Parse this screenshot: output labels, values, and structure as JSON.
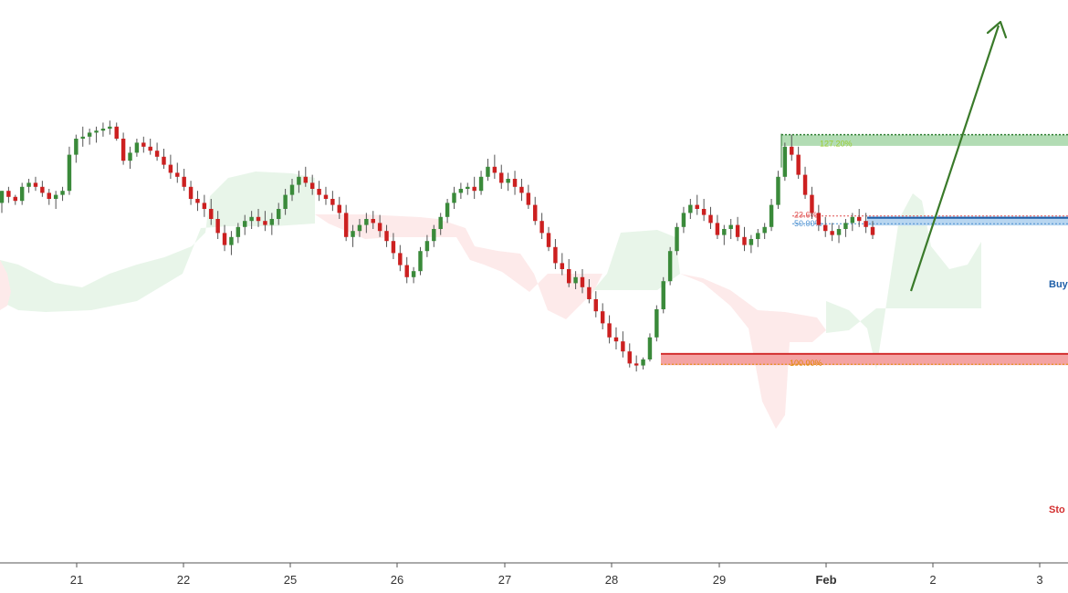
{
  "chart_data": {
    "type": "candlestick",
    "x_ticks": [
      "21",
      "22",
      "25",
      "26",
      "27",
      "28",
      "29",
      "Feb",
      "2",
      "3"
    ],
    "x_ticks_bold": [
      "Feb"
    ],
    "candles": [
      [
        208,
        214,
        203,
        214
      ],
      [
        214,
        216,
        208,
        211
      ],
      [
        211,
        212,
        207,
        209
      ],
      [
        209,
        218,
        207,
        216
      ],
      [
        216,
        220,
        213,
        218
      ],
      [
        218,
        221,
        214,
        216
      ],
      [
        216,
        219,
        211,
        213
      ],
      [
        213,
        215,
        207,
        210
      ],
      [
        210,
        214,
        205,
        212
      ],
      [
        212,
        216,
        209,
        214
      ],
      [
        214,
        236,
        212,
        232
      ],
      [
        232,
        242,
        228,
        240
      ],
      [
        240,
        246,
        236,
        241
      ],
      [
        241,
        245,
        237,
        243
      ],
      [
        243,
        246,
        238,
        244
      ],
      [
        244,
        248,
        241,
        245
      ],
      [
        245,
        249,
        242,
        246
      ],
      [
        246,
        248,
        239,
        240
      ],
      [
        240,
        243,
        227,
        229
      ],
      [
        229,
        236,
        225,
        233
      ],
      [
        233,
        240,
        231,
        238
      ],
      [
        238,
        241,
        233,
        236
      ],
      [
        236,
        240,
        232,
        234
      ],
      [
        234,
        238,
        229,
        231
      ],
      [
        231,
        235,
        225,
        227
      ],
      [
        227,
        232,
        220,
        223
      ],
      [
        223,
        228,
        218,
        221
      ],
      [
        221,
        225,
        214,
        216
      ],
      [
        216,
        219,
        207,
        210
      ],
      [
        210,
        214,
        204,
        208
      ],
      [
        208,
        212,
        201,
        205
      ],
      [
        205,
        210,
        197,
        200
      ],
      [
        200,
        204,
        190,
        193
      ],
      [
        193,
        197,
        184,
        187
      ],
      [
        187,
        194,
        182,
        191
      ],
      [
        191,
        198,
        188,
        196
      ],
      [
        196,
        202,
        192,
        199
      ],
      [
        199,
        204,
        195,
        201
      ],
      [
        201,
        205,
        196,
        199
      ],
      [
        199,
        204,
        194,
        197
      ],
      [
        197,
        203,
        192,
        200
      ],
      [
        200,
        208,
        197,
        205
      ],
      [
        205,
        215,
        202,
        212
      ],
      [
        212,
        220,
        209,
        217
      ],
      [
        217,
        224,
        213,
        221
      ],
      [
        221,
        226,
        216,
        218
      ],
      [
        218,
        222,
        212,
        215
      ],
      [
        215,
        219,
        209,
        212
      ],
      [
        212,
        216,
        207,
        210
      ],
      [
        210,
        214,
        204,
        207
      ],
      [
        207,
        211,
        200,
        203
      ],
      [
        203,
        207,
        189,
        191
      ],
      [
        191,
        197,
        186,
        194
      ],
      [
        194,
        200,
        191,
        197
      ],
      [
        197,
        203,
        193,
        200
      ],
      [
        200,
        204,
        195,
        198
      ],
      [
        198,
        202,
        191,
        194
      ],
      [
        194,
        197,
        186,
        189
      ],
      [
        189,
        193,
        180,
        183
      ],
      [
        183,
        187,
        174,
        177
      ],
      [
        177,
        181,
        168,
        171
      ],
      [
        171,
        176,
        168,
        174
      ],
      [
        174,
        186,
        172,
        184
      ],
      [
        184,
        192,
        181,
        189
      ],
      [
        189,
        197,
        186,
        195
      ],
      [
        195,
        203,
        192,
        201
      ],
      [
        201,
        210,
        198,
        208
      ],
      [
        208,
        216,
        205,
        213
      ],
      [
        213,
        218,
        210,
        215
      ],
      [
        215,
        218,
        212,
        216
      ],
      [
        216,
        221,
        210,
        214
      ],
      [
        214,
        224,
        212,
        221
      ],
      [
        221,
        230,
        219,
        226
      ],
      [
        226,
        232,
        220,
        223
      ],
      [
        223,
        227,
        215,
        218
      ],
      [
        218,
        223,
        214,
        220
      ],
      [
        220,
        224,
        212,
        216
      ],
      [
        216,
        220,
        209,
        213
      ],
      [
        213,
        217,
        205,
        207
      ],
      [
        207,
        211,
        197,
        199
      ],
      [
        199,
        203,
        190,
        193
      ],
      [
        193,
        196,
        184,
        186
      ],
      [
        186,
        190,
        175,
        178
      ],
      [
        178,
        183,
        172,
        175
      ],
      [
        175,
        180,
        166,
        168
      ],
      [
        168,
        174,
        165,
        171
      ],
      [
        171,
        175,
        163,
        166
      ],
      [
        166,
        170,
        158,
        160
      ],
      [
        160,
        164,
        151,
        154
      ],
      [
        154,
        158,
        145,
        148
      ],
      [
        148,
        152,
        138,
        141
      ],
      [
        141,
        146,
        135,
        139
      ],
      [
        139,
        144,
        131,
        134
      ],
      [
        134,
        138,
        126,
        128
      ],
      [
        128,
        132,
        124,
        127
      ],
      [
        127,
        131,
        125,
        130
      ],
      [
        130,
        143,
        129,
        141
      ],
      [
        141,
        157,
        139,
        155
      ],
      [
        155,
        171,
        153,
        169
      ],
      [
        169,
        186,
        167,
        184
      ],
      [
        184,
        198,
        182,
        196
      ],
      [
        196,
        206,
        193,
        203
      ],
      [
        203,
        210,
        200,
        207
      ],
      [
        207,
        212,
        202,
        205
      ],
      [
        205,
        210,
        199,
        202
      ],
      [
        202,
        206,
        195,
        198
      ],
      [
        198,
        202,
        190,
        192
      ],
      [
        192,
        197,
        187,
        195
      ],
      [
        195,
        200,
        190,
        197
      ],
      [
        197,
        201,
        189,
        191
      ],
      [
        191,
        196,
        184,
        187
      ],
      [
        187,
        192,
        183,
        190
      ],
      [
        190,
        195,
        186,
        193
      ],
      [
        193,
        198,
        190,
        196
      ],
      [
        196,
        210,
        194,
        207
      ],
      [
        207,
        224,
        205,
        221
      ],
      [
        221,
        238,
        219,
        236
      ],
      [
        236,
        242,
        229,
        232
      ],
      [
        232,
        236,
        220,
        222
      ],
      [
        222,
        226,
        210,
        212
      ],
      [
        212,
        216,
        200,
        203
      ],
      [
        203,
        207,
        194,
        197
      ],
      [
        197,
        201,
        191,
        194
      ],
      [
        194,
        198,
        189,
        192
      ],
      [
        192,
        197,
        188,
        195
      ],
      [
        195,
        200,
        191,
        198
      ],
      [
        198,
        203,
        194,
        201
      ],
      [
        201,
        205,
        196,
        199
      ],
      [
        199,
        203,
        193,
        196
      ],
      [
        196,
        199,
        190,
        192
      ]
    ],
    "levels": [
      {
        "label": "127.20%",
        "value": 242.0,
        "zone_to": 240.5,
        "label_color": "#9acd32"
      },
      {
        "label": "23.6%",
        "value": 201.5,
        "zone_to": 201.5,
        "label_color": "#e05050"
      },
      {
        "label": "50.00%",
        "value": 199.0,
        "zone_to": 199.0,
        "label_color": "#4a8fd0"
      },
      {
        "label": "100.00%",
        "value": 130.5,
        "zone_to": 129.0,
        "label_color": "#e08a00"
      }
    ],
    "side_labels": {
      "buy": "Buy",
      "stop": "Sto"
    },
    "colors": {
      "up": "#3a8a3a",
      "down": "#cc2020",
      "wick": "#555555",
      "cloud_bull": "#e8f5e9",
      "cloud_bear": "#fdeaea",
      "tp_zone": "#a5d6a7",
      "sl_zone": "#f4a3a3",
      "entry_zone": "#b8d6f0",
      "arrow": "#3a7a2a",
      "buy": "#1f5fa8",
      "stop": "#d32f2f"
    }
  }
}
